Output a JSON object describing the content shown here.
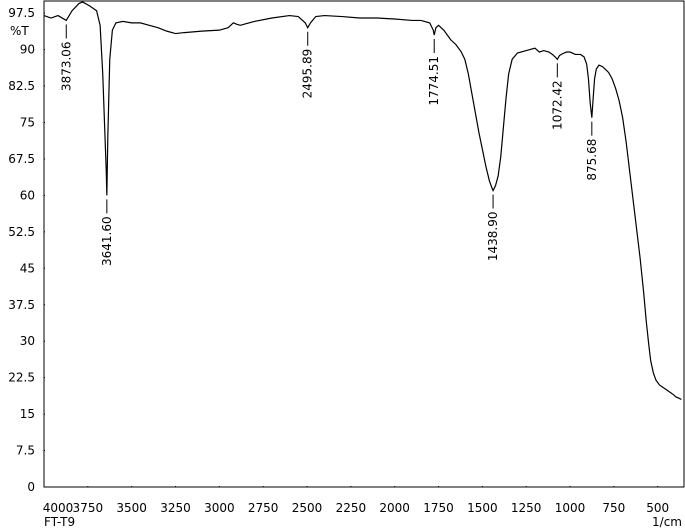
{
  "chart_data": {
    "type": "line",
    "y_label": "%T",
    "x_label": "1/cm",
    "sample_label": "FT-T9",
    "xlim": [
      4000,
      350
    ],
    "ylim": [
      0,
      100
    ],
    "xticks": [
      4000,
      3750,
      3500,
      3250,
      3000,
      2750,
      2500,
      2250,
      2000,
      1750,
      1500,
      1250,
      1000,
      750,
      500
    ],
    "yticks": [
      0,
      7.5,
      15,
      22.5,
      30,
      37.5,
      45,
      52.5,
      60,
      67.5,
      75,
      82.5,
      90,
      97.5
    ],
    "grid": false,
    "x": [
      4000,
      3960,
      3920,
      3873.06,
      3840,
      3800,
      3780,
      3740,
      3700,
      3680,
      3665,
      3655,
      3645,
      3641.6,
      3636,
      3625,
      3610,
      3590,
      3550,
      3500,
      3450,
      3400,
      3350,
      3300,
      3250,
      3200,
      3100,
      3000,
      2950,
      2920,
      2900,
      2880,
      2850,
      2800,
      2700,
      2600,
      2550,
      2510,
      2495.89,
      2480,
      2450,
      2400,
      2300,
      2200,
      2100,
      2000,
      1900,
      1850,
      1800,
      1780,
      1774.51,
      1765,
      1750,
      1720,
      1700,
      1680,
      1650,
      1620,
      1600,
      1580,
      1560,
      1540,
      1520,
      1500,
      1480,
      1460,
      1445,
      1438.9,
      1425,
      1410,
      1395,
      1380,
      1365,
      1350,
      1330,
      1300,
      1250,
      1200,
      1175,
      1150,
      1120,
      1100,
      1085,
      1072.42,
      1060,
      1040,
      1020,
      1000,
      970,
      940,
      920,
      905,
      895,
      885,
      875.68,
      868,
      860,
      850,
      835,
      815,
      800,
      780,
      760,
      740,
      720,
      700,
      680,
      660,
      640,
      620,
      600,
      580,
      565,
      550,
      540,
      525,
      510,
      490,
      470,
      450,
      430,
      410,
      395,
      380,
      365
    ],
    "series": [
      {
        "color": "#000000",
        "values": [
          97,
          96.5,
          97,
          96,
          98,
          99.5,
          99.8,
          99,
          98,
          95,
          85,
          75,
          65,
          60,
          72,
          88,
          94,
          95.5,
          95.8,
          95.5,
          95.5,
          95,
          94.5,
          93.8,
          93.3,
          93.5,
          93.8,
          94,
          94.5,
          95.5,
          95.2,
          95,
          95.3,
          95.8,
          96.5,
          97,
          96.8,
          95.5,
          94.5,
          95.5,
          96.8,
          97,
          96.8,
          96.5,
          96.5,
          96.3,
          96,
          96,
          95.5,
          94,
          93,
          94.5,
          95,
          94,
          93,
          92,
          91,
          89.5,
          88,
          85,
          81,
          77,
          73,
          69.5,
          66,
          63,
          61.5,
          61,
          62,
          64,
          68,
          74,
          80,
          85,
          88,
          89.3,
          89.8,
          90.3,
          89.5,
          89.8,
          89.5,
          89,
          88.5,
          88,
          88.8,
          89.2,
          89.5,
          89.5,
          89,
          89,
          88.5,
          87,
          84,
          79,
          76,
          80,
          84,
          86,
          86.8,
          86.5,
          86,
          85.3,
          84,
          82,
          79.5,
          76,
          71,
          65,
          59,
          53,
          47,
          40,
          34,
          29,
          26,
          23.5,
          22,
          21,
          20.5,
          20,
          19.5,
          19,
          18.5,
          18.3,
          18
        ]
      }
    ],
    "peak_labels": [
      {
        "value": 3873.06,
        "label": "3873.06"
      },
      {
        "value": 3641.6,
        "label": "3641.60"
      },
      {
        "value": 2495.89,
        "label": "2495.89"
      },
      {
        "value": 1774.51,
        "label": "1774.51"
      },
      {
        "value": 1438.9,
        "label": "1438.90"
      },
      {
        "value": 1072.42,
        "label": "1072.42"
      },
      {
        "value": 875.68,
        "label": "875.68"
      }
    ]
  }
}
